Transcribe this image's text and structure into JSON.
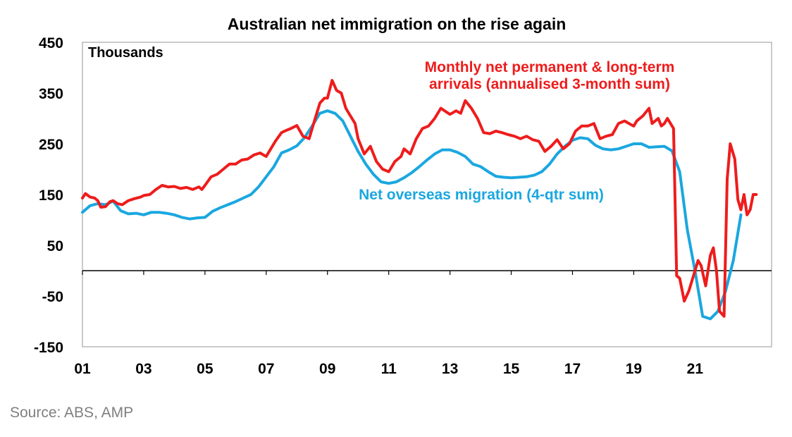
{
  "chart_data": {
    "type": "line",
    "title": "Australian net immigration on the rise again",
    "unit_label": "Thousands",
    "source": "Source: ABS, AMP",
    "ylim": [
      -150,
      450
    ],
    "yticks": [
      450,
      350,
      250,
      150,
      50,
      -50,
      -150
    ],
    "ytick_labels": [
      "450",
      "350",
      "250",
      "150",
      "50",
      "-50",
      "-150"
    ],
    "xlim": [
      2001,
      2023.5
    ],
    "xticks": [
      2001,
      2003,
      2005,
      2007,
      2009,
      2011,
      2013,
      2015,
      2017,
      2019,
      2021
    ],
    "xtick_labels": [
      "01",
      "03",
      "05",
      "07",
      "09",
      "11",
      "13",
      "15",
      "17",
      "19",
      "21"
    ],
    "grid": false,
    "colors": {
      "red": "#ee1c1c",
      "blue": "#1aa7e0"
    },
    "annotations": [
      {
        "lines": [
          "Monthly net permanent & long-term",
          "arrivals (annualised 3-month sum)"
        ],
        "color": "#ee1c1c"
      },
      {
        "lines": [
          "Net overseas migration (4-qtr sum)"
        ],
        "color": "#1aa7e0"
      }
    ],
    "series": [
      {
        "name": "Monthly net permanent & long-term arrivals (annualised 3-month sum)",
        "color": "#ee1c1c",
        "x": [
          2001.0,
          2001.1,
          2001.25,
          2001.4,
          2001.5,
          2001.6,
          2001.75,
          2001.9,
          2002.0,
          2002.15,
          2002.3,
          2002.5,
          2002.7,
          2002.9,
          2003.0,
          2003.2,
          2003.4,
          2003.6,
          2003.8,
          2004.0,
          2004.2,
          2004.4,
          2004.6,
          2004.8,
          2004.9,
          2005.0,
          2005.2,
          2005.4,
          2005.6,
          2005.8,
          2006.0,
          2006.2,
          2006.4,
          2006.6,
          2006.8,
          2007.0,
          2007.1,
          2007.3,
          2007.5,
          2007.6,
          2007.8,
          2008.0,
          2008.2,
          2008.4,
          2008.6,
          2008.75,
          2008.9,
          2009.0,
          2009.15,
          2009.3,
          2009.45,
          2009.6,
          2009.75,
          2009.9,
          2010.0,
          2010.2,
          2010.4,
          2010.6,
          2010.8,
          2011.0,
          2011.2,
          2011.4,
          2011.5,
          2011.7,
          2011.9,
          2012.1,
          2012.3,
          2012.5,
          2012.7,
          2012.9,
          2013.0,
          2013.2,
          2013.35,
          2013.5,
          2013.7,
          2013.9,
          2014.1,
          2014.3,
          2014.5,
          2014.7,
          2014.9,
          2015.1,
          2015.3,
          2015.5,
          2015.7,
          2015.9,
          2016.1,
          2016.3,
          2016.5,
          2016.7,
          2016.9,
          2017.1,
          2017.3,
          2017.5,
          2017.7,
          2017.9,
          2018.1,
          2018.3,
          2018.5,
          2018.7,
          2018.9,
          2019.0,
          2019.1,
          2019.3,
          2019.5,
          2019.6,
          2019.8,
          2019.9,
          2020.0,
          2020.1,
          2020.2,
          2020.3,
          2020.4,
          2020.5,
          2020.65,
          2020.8,
          2020.95,
          2021.1,
          2021.2,
          2021.35,
          2021.5,
          2021.6,
          2021.7,
          2021.8,
          2021.95,
          2022.05,
          2022.15,
          2022.3,
          2022.4,
          2022.5,
          2022.6,
          2022.7,
          2022.8,
          2022.9,
          2023.0
        ],
        "values": [
          143,
          152,
          145,
          143,
          138,
          125,
          126,
          136,
          138,
          132,
          130,
          138,
          142,
          145,
          148,
          150,
          160,
          168,
          165,
          166,
          162,
          164,
          160,
          165,
          160,
          168,
          185,
          190,
          200,
          210,
          210,
          218,
          220,
          228,
          232,
          225,
          235,
          255,
          272,
          275,
          280,
          286,
          265,
          260,
          300,
          330,
          340,
          340,
          375,
          355,
          350,
          320,
          305,
          290,
          260,
          230,
          245,
          215,
          200,
          195,
          215,
          225,
          240,
          230,
          260,
          280,
          285,
          300,
          320,
          312,
          308,
          315,
          310,
          335,
          320,
          300,
          272,
          270,
          275,
          272,
          268,
          265,
          260,
          265,
          258,
          255,
          235,
          245,
          258,
          240,
          250,
          275,
          285,
          285,
          290,
          260,
          265,
          268,
          290,
          295,
          288,
          285,
          295,
          305,
          320,
          290,
          300,
          285,
          290,
          300,
          290,
          280,
          -10,
          -15,
          -60,
          -40,
          -10,
          20,
          10,
          -30,
          30,
          45,
          0,
          -80,
          -90,
          180,
          250,
          220,
          140,
          120,
          150,
          110,
          120,
          150,
          150
        ]
      },
      {
        "name": "Net overseas migration (4-qtr sum)",
        "color": "#1aa7e0",
        "x": [
          2001.0,
          2001.25,
          2001.5,
          2001.75,
          2002.0,
          2002.25,
          2002.5,
          2002.75,
          2003.0,
          2003.25,
          2003.5,
          2003.75,
          2004.0,
          2004.25,
          2004.5,
          2004.75,
          2005.0,
          2005.25,
          2005.5,
          2005.75,
          2006.0,
          2006.25,
          2006.5,
          2006.75,
          2007.0,
          2007.25,
          2007.5,
          2007.75,
          2008.0,
          2008.25,
          2008.5,
          2008.75,
          2009.0,
          2009.25,
          2009.5,
          2009.75,
          2010.0,
          2010.25,
          2010.5,
          2010.75,
          2011.0,
          2011.25,
          2011.5,
          2011.75,
          2012.0,
          2012.25,
          2012.5,
          2012.75,
          2013.0,
          2013.25,
          2013.5,
          2013.75,
          2014.0,
          2014.25,
          2014.5,
          2014.75,
          2015.0,
          2015.25,
          2015.5,
          2015.75,
          2016.0,
          2016.25,
          2016.5,
          2016.75,
          2017.0,
          2017.25,
          2017.5,
          2017.75,
          2018.0,
          2018.25,
          2018.5,
          2018.75,
          2019.0,
          2019.25,
          2019.5,
          2019.75,
          2020.0,
          2020.25,
          2020.5,
          2020.75,
          2021.0,
          2021.25,
          2021.5,
          2021.75,
          2022.0,
          2022.25,
          2022.5
        ],
        "values": [
          115,
          128,
          132,
          130,
          137,
          118,
          112,
          113,
          110,
          115,
          115,
          113,
          110,
          105,
          102,
          104,
          105,
          117,
          124,
          130,
          136,
          143,
          150,
          165,
          185,
          205,
          232,
          238,
          246,
          262,
          285,
          310,
          315,
          310,
          295,
          265,
          235,
          210,
          190,
          175,
          172,
          175,
          183,
          193,
          205,
          218,
          230,
          238,
          238,
          233,
          225,
          210,
          205,
          195,
          186,
          184,
          183,
          184,
          185,
          188,
          195,
          210,
          230,
          245,
          257,
          262,
          260,
          247,
          240,
          238,
          240,
          245,
          250,
          250,
          243,
          244,
          245,
          236,
          195,
          80,
          0,
          -90,
          -95,
          -80,
          -40,
          20,
          110
        ]
      }
    ]
  }
}
